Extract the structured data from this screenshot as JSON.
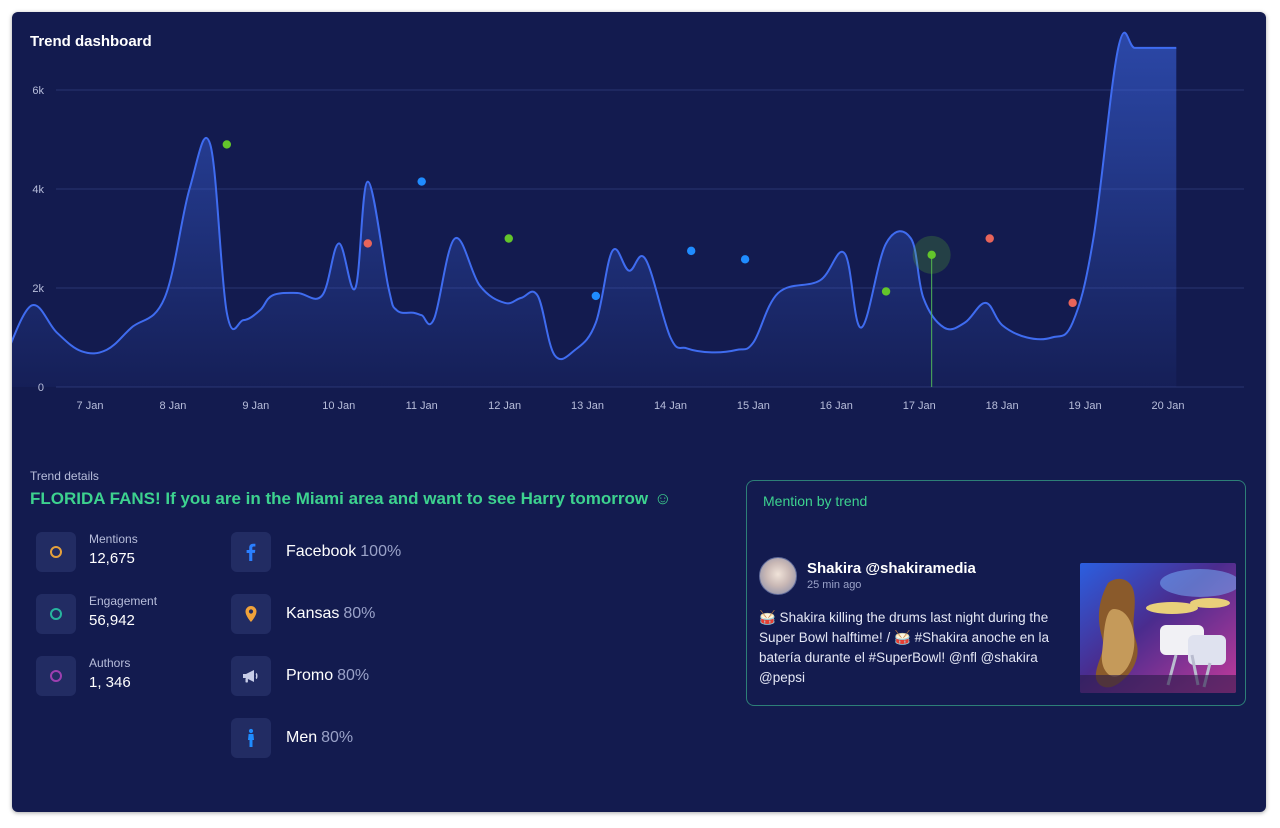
{
  "dashboard": {
    "title": "Trend dashboard"
  },
  "chart_data": {
    "type": "area",
    "title": "Trend dashboard",
    "x_ticks": [
      "7 Jan",
      "8 Jan",
      "9 Jan",
      "10 Jan",
      "11 Jan",
      "12 Jan",
      "13 Jan",
      "14 Jan",
      "15 Jan",
      "16 Jan",
      "17 Jan",
      "18 Jan",
      "19 Jan",
      "20 Jan"
    ],
    "y_ticks": [
      "0",
      "2k",
      "4k",
      "6k"
    ],
    "ylim": [
      0,
      6000
    ],
    "xlim": [
      6.0,
      20.15
    ],
    "grid": true,
    "line_color": "#3f6cf0",
    "series": [
      {
        "x": [
          6.0,
          6.3,
          6.6,
          6.9,
          7.2,
          7.5,
          7.9,
          8.2,
          8.45,
          8.65,
          8.85,
          9.05,
          9.2,
          9.5,
          9.8,
          10.0,
          10.2,
          10.35,
          10.6,
          10.7,
          10.9,
          11.0,
          11.15,
          11.4,
          11.7,
          12.0,
          12.2,
          12.4,
          12.6,
          12.85,
          13.1,
          13.3,
          13.5,
          13.7,
          14.0,
          14.2,
          14.5,
          14.8,
          15.0,
          15.3,
          15.8,
          16.1,
          16.3,
          16.6,
          16.9,
          17.05,
          17.3,
          17.55,
          17.8,
          18.0,
          18.3,
          18.6,
          18.85,
          19.1,
          19.4,
          19.6,
          19.85,
          20.0,
          20.1
        ],
        "values": [
          700,
          1650,
          1100,
          720,
          750,
          1200,
          1800,
          4000,
          4900,
          1500,
          1350,
          1550,
          1850,
          1900,
          1850,
          2900,
          2000,
          4150,
          2000,
          1550,
          1500,
          1450,
          1380,
          3000,
          2050,
          1700,
          1800,
          1840,
          650,
          750,
          1300,
          2750,
          2350,
          2580,
          1000,
          780,
          700,
          750,
          900,
          1900,
          2150,
          2700,
          1200,
          2900,
          3000,
          1800,
          1200,
          1300,
          1700,
          1250,
          1000,
          1000,
          1300,
          3000,
          6850,
          6850,
          6850,
          6850,
          6850
        ]
      }
    ],
    "markers": [
      {
        "x": 8.65,
        "y": 4900,
        "color": "#63c52b"
      },
      {
        "x": 10.35,
        "y": 2900,
        "color": "#e8645a"
      },
      {
        "x": 11.0,
        "y": 4150,
        "color": "#1f8cff"
      },
      {
        "x": 12.05,
        "y": 3000,
        "color": "#63c52b"
      },
      {
        "x": 13.1,
        "y": 1840,
        "color": "#1f8cff"
      },
      {
        "x": 14.25,
        "y": 2750,
        "color": "#1f8cff"
      },
      {
        "x": 14.9,
        "y": 2580,
        "color": "#1f8cff"
      },
      {
        "x": 16.6,
        "y": 1930,
        "color": "#63c52b"
      },
      {
        "x": 17.15,
        "y": 2670,
        "color": "#63c52b",
        "highlight": true
      },
      {
        "x": 17.85,
        "y": 3000,
        "color": "#e8645a"
      },
      {
        "x": 18.85,
        "y": 1700,
        "color": "#e8645a"
      }
    ]
  },
  "details": {
    "label": "Trend details",
    "headline": "FLORIDA FANS! If you are in the Miami area and want to see Harry tomorrow",
    "headline_emoji": "☺",
    "stats": [
      {
        "label": "Mentions",
        "value": "12,675",
        "color": "#e6a13b"
      },
      {
        "label": "Engagement",
        "value": "56,942",
        "color": "#27b59e"
      },
      {
        "label": "Authors",
        "value": "1, 346",
        "color": "#9c3fb0"
      }
    ],
    "attributes": [
      {
        "name": "Facebook",
        "percent": "100%",
        "icon": "facebook-icon",
        "color": "#2a7fff"
      },
      {
        "name": "Kansas",
        "percent": "80%",
        "icon": "location-pin-icon",
        "color": "#f0a23a"
      },
      {
        "name": "Promo",
        "percent": "80%",
        "icon": "megaphone-icon",
        "color": "#c7cde8"
      },
      {
        "name": "Men",
        "percent": "80%",
        "icon": "man-icon",
        "color": "#1f8cff"
      }
    ]
  },
  "mention": {
    "title": "Mention by trend",
    "author": "Shakira @shakiramedia",
    "time": "25 min ago",
    "text": "🥁 Shakira killing the drums last night during the Super Bowl halftime! / 🥁 #Shakira anoche en la batería durante el #SuperBowl! @nfl @shakira @pepsi"
  }
}
